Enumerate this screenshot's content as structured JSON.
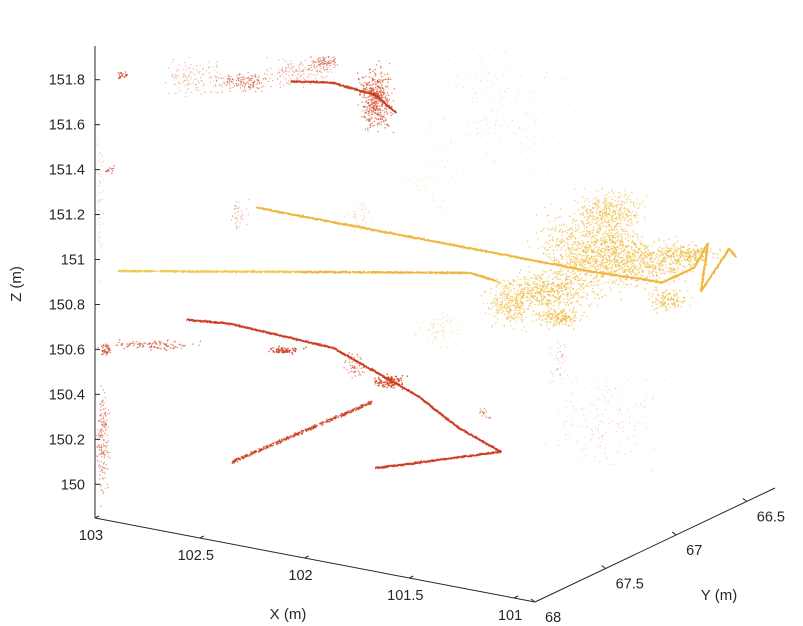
{
  "chart_data": {
    "type": "scatter",
    "title": "",
    "xlabel": "X (m)",
    "ylabel": "Y (m)",
    "zlabel": "Z (m)",
    "xlim": [
      100.9,
      103
    ],
    "ylim": [
      66.3,
      68
    ],
    "zlim": [
      149.85,
      151.95
    ],
    "x_ticks": [
      103,
      102.5,
      102,
      101.5,
      101
    ],
    "x_tick_labels": [
      "103",
      "102.5",
      "102",
      "101.5",
      "101"
    ],
    "y_ticks": [
      68,
      67.5,
      67,
      66.5
    ],
    "y_tick_labels": [
      "68",
      "67.5",
      "67",
      "66.5"
    ],
    "z_ticks": [
      150,
      150.2,
      150.4,
      150.6,
      150.8,
      151,
      151.2,
      151.4,
      151.6,
      151.8
    ],
    "z_tick_labels": [
      "150",
      "150.2",
      "150.4",
      "150.6",
      "150.8",
      "151",
      "151.2",
      "151.4",
      "151.6",
      "151.8"
    ],
    "colormap": [
      "#cc3a1e",
      "#d9602a",
      "#e68f2c",
      "#f0b53a",
      "#f2c94a"
    ],
    "grid": false,
    "legend": "none",
    "series": [
      {
        "points": [
          [
            102.9,
            67.0,
            150.95
          ],
          [
            102.7,
            67.0,
            150.95
          ],
          [
            102.5,
            67.0,
            150.95
          ],
          [
            102.3,
            67.0,
            150.95
          ],
          [
            102.1,
            67.0,
            150.95
          ],
          [
            101.9,
            67.0,
            150.95
          ],
          [
            101.7,
            67.0,
            150.95
          ],
          [
            101.5,
            67.0,
            150.95
          ],
          [
            101.3,
            67.0,
            150.95
          ],
          [
            101.1,
            66.98,
            150.95
          ],
          [
            101.0,
            66.95,
            150.94
          ],
          [
            100.95,
            66.8,
            150.97
          ],
          [
            100.95,
            66.7,
            151.05
          ],
          [
            100.95,
            66.75,
            150.85
          ],
          [
            100.95,
            66.55,
            150.98
          ],
          [
            100.95,
            66.5,
            150.93
          ]
        ]
      },
      {
        "points": [
          [
            102.4,
            67.5,
            151.75
          ],
          [
            102.2,
            67.5,
            151.78
          ],
          [
            102.0,
            67.5,
            151.76
          ],
          [
            101.9,
            67.5,
            151.7
          ],
          [
            102.9,
            67.5,
            150.6
          ],
          [
            102.7,
            67.5,
            150.62
          ],
          [
            102.2,
            67.5,
            150.6
          ],
          [
            101.8,
            67.5,
            150.46
          ],
          [
            101.6,
            67.5,
            150.35
          ],
          [
            101.4,
            67.5,
            150.28
          ],
          [
            102.0,
            67.5,
            150.1
          ]
        ]
      }
    ]
  }
}
